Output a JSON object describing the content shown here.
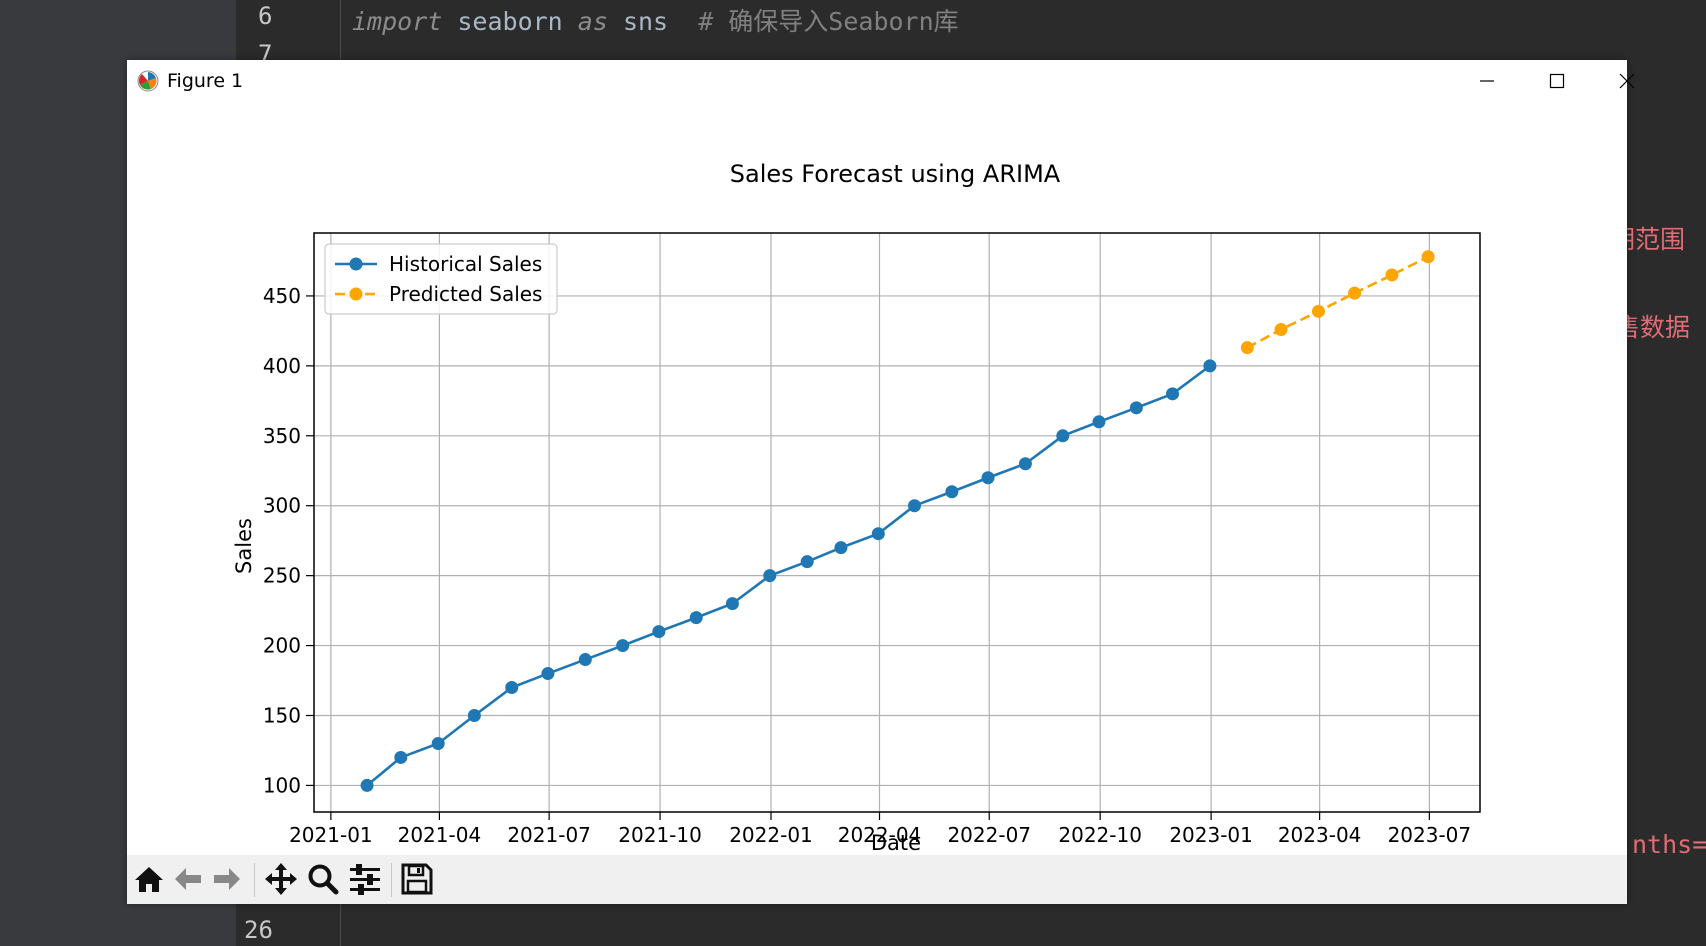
{
  "editor": {
    "line_numbers": [
      "6",
      "7",
      "26"
    ],
    "code_line": {
      "kw1": "import",
      "mid1": " seaborn ",
      "kw2": "as",
      "mid2": " sns  ",
      "comment": "# 确保导入Seaborn库"
    },
    "right_fragments": [
      "期范围",
      "售数据",
      "nths="
    ]
  },
  "window": {
    "title": "Figure 1",
    "controls": [
      "minimize-icon",
      "maximize-icon",
      "close-icon"
    ]
  },
  "toolbar": {
    "buttons": [
      "home-icon",
      "back-icon",
      "forward-icon",
      "pan-icon",
      "zoom-icon",
      "configure-icon",
      "save-icon"
    ]
  },
  "chart_data": {
    "type": "line",
    "title": "Sales Forecast using ARIMA",
    "xlabel": "Date",
    "ylabel": "Sales",
    "x_ticks": [
      "2021-01",
      "2021-04",
      "2021-07",
      "2021-10",
      "2022-01",
      "2022-04",
      "2022-07",
      "2022-10",
      "2023-01",
      "2023-04",
      "2023-07"
    ],
    "y_ticks": [
      100,
      150,
      200,
      250,
      300,
      350,
      400,
      450
    ],
    "xlim": [
      "2020-12-18",
      "2023-08-12"
    ],
    "ylim": [
      81,
      495
    ],
    "grid": true,
    "legend_position": "upper-left",
    "series": [
      {
        "name": "Historical Sales",
        "color": "#1f77b4",
        "line_style": "solid",
        "marker": "circle",
        "x": [
          "2021-01-31",
          "2021-02-28",
          "2021-03-31",
          "2021-04-30",
          "2021-05-31",
          "2021-06-30",
          "2021-07-31",
          "2021-08-31",
          "2021-09-30",
          "2021-10-31",
          "2021-11-30",
          "2021-12-31",
          "2022-01-31",
          "2022-02-28",
          "2022-03-31",
          "2022-04-30",
          "2022-05-31",
          "2022-06-30",
          "2022-07-31",
          "2022-08-31",
          "2022-09-30",
          "2022-10-31",
          "2022-11-30",
          "2022-12-31"
        ],
        "values": [
          100,
          120,
          130,
          150,
          170,
          180,
          190,
          200,
          210,
          220,
          230,
          250,
          260,
          270,
          280,
          300,
          310,
          320,
          330,
          350,
          360,
          370,
          380,
          400
        ]
      },
      {
        "name": "Predicted Sales",
        "color": "#ffa500",
        "line_style": "dashed",
        "marker": "circle",
        "x": [
          "2023-01-31",
          "2023-02-28",
          "2023-03-31",
          "2023-04-30",
          "2023-05-31",
          "2023-06-30"
        ],
        "values": [
          413,
          426,
          439,
          452,
          465,
          478
        ]
      }
    ]
  }
}
